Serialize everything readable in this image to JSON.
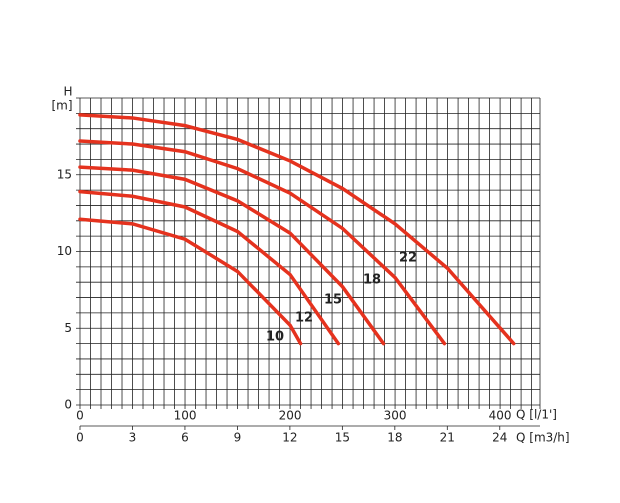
{
  "chart_data": {
    "type": "line",
    "y_label_top": "H",
    "y_label_unit": "[m]",
    "x_label": "Q [l/1']",
    "x2_label": "Q [m3/h]",
    "xlim": [
      0,
      438
    ],
    "xticks": [
      0,
      100,
      200,
      300,
      400
    ],
    "x2lim": [
      0,
      26.3
    ],
    "x2ticks": [
      0,
      3,
      6,
      9,
      12,
      15,
      18,
      21,
      24
    ],
    "ylim": [
      0,
      20
    ],
    "yticks": [
      0,
      5,
      10,
      15
    ],
    "xgrid": [
      0,
      10,
      20,
      30,
      40,
      50,
      60,
      70,
      80,
      90,
      100,
      110,
      120,
      130,
      140,
      150,
      160,
      170,
      180,
      190,
      200,
      210,
      220,
      230,
      240,
      250,
      260,
      270,
      280,
      290,
      300,
      310,
      320,
      330,
      340,
      350,
      360,
      370,
      380,
      390,
      400,
      410,
      420,
      430,
      438
    ],
    "ygrid": [
      0,
      1,
      2,
      3,
      4,
      5,
      6,
      7,
      8,
      9,
      10,
      11,
      12,
      13,
      14,
      15,
      16,
      17,
      18,
      19,
      20
    ],
    "series": [
      {
        "name": "10",
        "color": "#e5321e",
        "x": [
          0,
          50,
          100,
          150,
          200,
          210
        ],
        "values": [
          12.1,
          11.8,
          10.8,
          8.7,
          5.2,
          4.0
        ]
      },
      {
        "name": "12",
        "color": "#e5321e",
        "x": [
          0,
          50,
          100,
          150,
          200,
          246
        ],
        "values": [
          13.9,
          13.6,
          12.9,
          11.3,
          8.5,
          4.0
        ]
      },
      {
        "name": "15",
        "color": "#e5321e",
        "x": [
          0,
          50,
          100,
          150,
          200,
          250,
          289
        ],
        "values": [
          15.5,
          15.3,
          14.7,
          13.3,
          11.2,
          7.7,
          4.0
        ]
      },
      {
        "name": "18",
        "color": "#e5321e",
        "x": [
          0,
          50,
          100,
          150,
          200,
          250,
          300,
          347
        ],
        "values": [
          17.2,
          17.0,
          16.5,
          15.4,
          13.8,
          11.5,
          8.3,
          4.0
        ]
      },
      {
        "name": "22",
        "color": "#e5321e",
        "x": [
          0,
          50,
          100,
          150,
          200,
          250,
          300,
          350,
          413
        ],
        "values": [
          18.9,
          18.7,
          18.2,
          17.3,
          15.9,
          14.1,
          11.8,
          8.9,
          4.0
        ]
      }
    ]
  }
}
